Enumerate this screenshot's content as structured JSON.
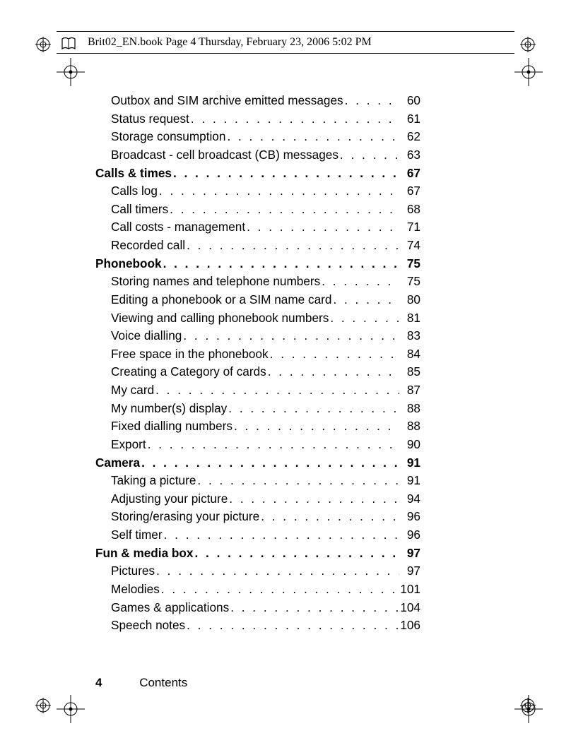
{
  "header_text": "Brit02_EN.book  Page 4  Thursday, February 23, 2006  5:02 PM",
  "page_number": "4",
  "footer_label": "Contents",
  "toc": [
    {
      "label": "Outbox and SIM archive emitted messages",
      "page": "60",
      "indent": true,
      "bold": false
    },
    {
      "label": "Status request",
      "page": "61",
      "indent": true,
      "bold": false
    },
    {
      "label": "Storage consumption",
      "page": "62",
      "indent": true,
      "bold": false
    },
    {
      "label": "Broadcast - cell broadcast (CB) messages",
      "page": "63",
      "indent": true,
      "bold": false
    },
    {
      "label": "Calls & times ",
      "page": "67",
      "indent": false,
      "bold": true
    },
    {
      "label": "Calls log",
      "page": "67",
      "indent": true,
      "bold": false
    },
    {
      "label": "Call timers ",
      "page": "68",
      "indent": true,
      "bold": false
    },
    {
      "label": "Call costs - management",
      "page": "71",
      "indent": true,
      "bold": false
    },
    {
      "label": "Recorded call",
      "page": "74",
      "indent": true,
      "bold": false
    },
    {
      "label": "Phonebook",
      "page": "75",
      "indent": false,
      "bold": true
    },
    {
      "label": "Storing names and telephone numbers",
      "page": "75",
      "indent": true,
      "bold": false
    },
    {
      "label": "Editing a phonebook or a SIM name card ",
      "page": "80",
      "indent": true,
      "bold": false
    },
    {
      "label": "Viewing and calling phonebook numbers",
      "page": "81",
      "indent": true,
      "bold": false
    },
    {
      "label": "Voice dialling ",
      "page": "83",
      "indent": true,
      "bold": false
    },
    {
      "label": "Free space in the phonebook",
      "page": "84",
      "indent": true,
      "bold": false
    },
    {
      "label": "Creating a Category of cards",
      "page": "85",
      "indent": true,
      "bold": false
    },
    {
      "label": "My card ",
      "page": "87",
      "indent": true,
      "bold": false
    },
    {
      "label": "My number(s) display",
      "page": "88",
      "indent": true,
      "bold": false
    },
    {
      "label": "Fixed dialling numbers",
      "page": "88",
      "indent": true,
      "bold": false
    },
    {
      "label": "Export",
      "page": "90",
      "indent": true,
      "bold": false
    },
    {
      "label": "Camera",
      "page": "91",
      "indent": false,
      "bold": true
    },
    {
      "label": "Taking a picture ",
      "page": "91",
      "indent": true,
      "bold": false
    },
    {
      "label": "Adjusting your picture ",
      "page": "94",
      "indent": true,
      "bold": false
    },
    {
      "label": "Storing/erasing your picture",
      "page": "96",
      "indent": true,
      "bold": false
    },
    {
      "label": "Self timer",
      "page": "96",
      "indent": true,
      "bold": false
    },
    {
      "label": "Fun & media box",
      "page": "97",
      "indent": false,
      "bold": true
    },
    {
      "label": "Pictures ",
      "page": "97",
      "indent": true,
      "bold": false
    },
    {
      "label": "Melodies ",
      "page": "101",
      "indent": true,
      "bold": false
    },
    {
      "label": "Games & applications ",
      "page": "104",
      "indent": true,
      "bold": false
    },
    {
      "label": "Speech notes",
      "page": "106",
      "indent": true,
      "bold": false
    }
  ]
}
